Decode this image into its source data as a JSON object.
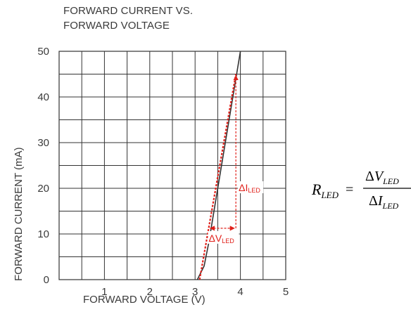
{
  "chart_data": {
    "type": "line",
    "title": "FORWARD CURRENT VS.",
    "subtitle": "FORWARD VOLTAGE",
    "xlabel": "FORWARD VOLTAGE (V)",
    "ylabel": "FORWARD CURRENT (mA)",
    "xlim": [
      0,
      5
    ],
    "ylim": [
      0,
      50
    ],
    "x_ticks": [
      "1",
      "2",
      "3",
      "4",
      "5"
    ],
    "y_ticks": [
      "0",
      "10",
      "20",
      "30",
      "40",
      "50"
    ],
    "grid": true,
    "series": [
      {
        "color": "#333333",
        "x": [
          3.05,
          3.1,
          3.2,
          3.3,
          3.4,
          3.5,
          3.6,
          3.7,
          3.8,
          3.9,
          4.0
        ],
        "y": [
          0,
          1,
          3,
          8,
          14,
          20,
          26,
          32,
          38,
          44,
          50
        ]
      },
      {
        "style": "dashed",
        "color": "#e0201a",
        "x": [
          3.1,
          3.9
        ],
        "y": [
          0,
          45
        ]
      }
    ],
    "annotations": {
      "delta_i_label": {
        "prefix": "ΔI",
        "sub": "LED"
      },
      "delta_v_label": {
        "prefix": "ΔV",
        "sub": "LED"
      },
      "color": "#e0201a"
    }
  },
  "formula": {
    "lhs_main": "R",
    "lhs_sub": "LED",
    "equals": "=",
    "num_main": "V",
    "num_sub": "LED",
    "den_main": "I",
    "den_sub": "LED",
    "delta": "Δ"
  }
}
